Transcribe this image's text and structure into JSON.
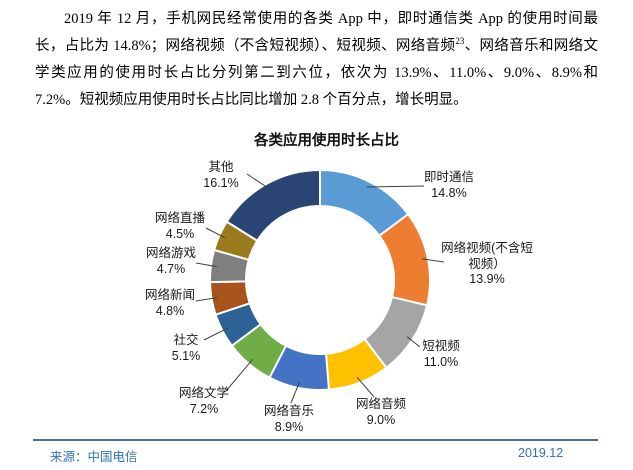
{
  "page": {
    "paragraph": {
      "part1": "2019 年 12 月，手机网民经常使用的各类 App 中，即时通信类 App 的使用时间最长，占比为 14.8%；网络视频（不含短视频）、短视频、网络音频",
      "footnote_ref": "23",
      "part2": "、网络音乐和网络文学类应用的使用时长占比分列第二到六位，依次为 13.9%、11.0%、9.0%、8.9%和 7.2%。短视频应用使用时长占比同比增加 2.8 个百分点，增长明显。"
    },
    "footer": {
      "source": "来源：中国电信",
      "date": "2019.12"
    }
  },
  "chart_data": {
    "type": "pie",
    "subtype": "donut",
    "title": "各类应用使用时长占比",
    "unit": "%",
    "start_angle_deg": 0,
    "direction": "clockwise",
    "inner_radius_ratio": 0.67,
    "legend_position": "none",
    "categories": [
      "即时通信",
      "网络视频(不含短视频）",
      "短视频",
      "网络音频",
      "网络音乐",
      "网络文学",
      "社交",
      "网络新闻",
      "网络游戏",
      "网络直播",
      "其他"
    ],
    "values": [
      14.8,
      13.9,
      11.0,
      9.0,
      8.9,
      7.2,
      5.1,
      4.8,
      4.7,
      4.5,
      16.1
    ],
    "segments": [
      {
        "label": "即时通信",
        "value": 14.8,
        "display_label": "即时通信",
        "display_value": "14.8%",
        "color": "#5B9BD5"
      },
      {
        "label": "网络视频(不含短视频）",
        "value": 13.9,
        "display_label": "网络视频(不含短\n视频）",
        "display_value": "13.9%",
        "color": "#ED7D31"
      },
      {
        "label": "短视频",
        "value": 11.0,
        "display_label": "短视频",
        "display_value": "11.0%",
        "color": "#A5A5A5"
      },
      {
        "label": "网络音频",
        "value": 9.0,
        "display_label": "网络音频",
        "display_value": "9.0%",
        "color": "#FFC000"
      },
      {
        "label": "网络音乐",
        "value": 8.9,
        "display_label": "网络音乐",
        "display_value": "8.9%",
        "color": "#4472C4"
      },
      {
        "label": "网络文学",
        "value": 7.2,
        "display_label": "网络文学",
        "display_value": "7.2%",
        "color": "#70AD47"
      },
      {
        "label": "社交",
        "value": 5.1,
        "display_label": "社交",
        "display_value": "5.1%",
        "color": "#2D6296"
      },
      {
        "label": "网络新闻",
        "value": 4.8,
        "display_label": "网络新闻",
        "display_value": "4.8%",
        "color": "#A8521C"
      },
      {
        "label": "网络游戏",
        "value": 4.7,
        "display_label": "网络游戏",
        "display_value": "4.7%",
        "color": "#7F7F7F"
      },
      {
        "label": "网络直播",
        "value": 4.5,
        "display_label": "网络直播",
        "display_value": "4.5%",
        "color": "#9A7B1E"
      },
      {
        "label": "其他",
        "value": 16.1,
        "display_label": "其他",
        "display_value": "16.1%",
        "color": "#2A4573"
      }
    ]
  }
}
